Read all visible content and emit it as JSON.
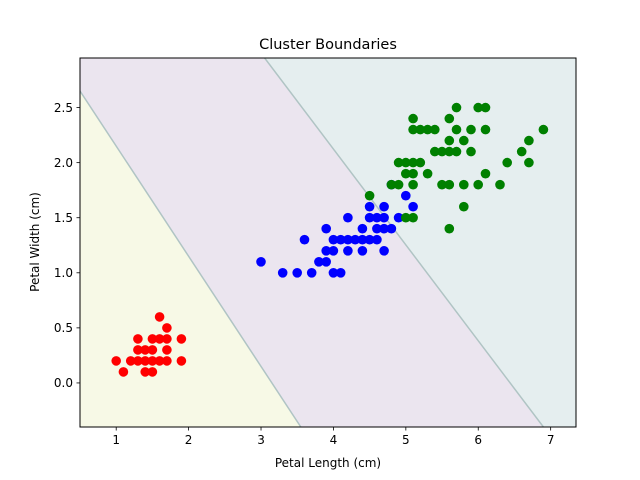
{
  "chart_data": {
    "type": "scatter",
    "title": "Cluster Boundaries",
    "xlabel": "Petal Length (cm)",
    "ylabel": "Petal Width (cm)",
    "xlim": [
      0.5,
      7.35
    ],
    "ylim": [
      -0.4,
      2.95
    ],
    "xticks": [
      1,
      2,
      3,
      4,
      5,
      6,
      7
    ],
    "xtick_labels": [
      "1",
      "2",
      "3",
      "4",
      "5",
      "6",
      "7"
    ],
    "yticks": [
      0.0,
      0.5,
      1.0,
      1.5,
      2.0,
      2.5
    ],
    "ytick_labels": [
      "0.0",
      "0.5",
      "1.0",
      "1.5",
      "2.0",
      "2.5"
    ],
    "grid": false,
    "regions": [
      {
        "color": "#f7f9e6",
        "polygon": [
          [
            0.5,
            -0.4
          ],
          [
            3.55,
            -0.4
          ],
          [
            0.5,
            2.65
          ]
        ]
      },
      {
        "color": "#ebe5ef",
        "polygon": [
          [
            3.55,
            -0.4
          ],
          [
            6.9,
            -0.4
          ],
          [
            3.05,
            2.95
          ],
          [
            0.5,
            2.95
          ],
          [
            0.5,
            2.65
          ]
        ]
      },
      {
        "color": "#e5eeef",
        "polygon": [
          [
            6.9,
            -0.4
          ],
          [
            7.35,
            -0.4
          ],
          [
            7.35,
            2.95
          ],
          [
            3.05,
            2.95
          ]
        ]
      }
    ],
    "boundary_color": "#b0c4c4",
    "series": [
      {
        "color": "#ff0000",
        "points": [
          [
            1.0,
            0.2
          ],
          [
            1.1,
            0.1
          ],
          [
            1.2,
            0.2
          ],
          [
            1.3,
            0.2
          ],
          [
            1.3,
            0.3
          ],
          [
            1.3,
            0.4
          ],
          [
            1.4,
            0.1
          ],
          [
            1.4,
            0.2
          ],
          [
            1.4,
            0.3
          ],
          [
            1.5,
            0.1
          ],
          [
            1.5,
            0.2
          ],
          [
            1.5,
            0.3
          ],
          [
            1.5,
            0.4
          ],
          [
            1.6,
            0.2
          ],
          [
            1.6,
            0.4
          ],
          [
            1.6,
            0.6
          ],
          [
            1.7,
            0.2
          ],
          [
            1.7,
            0.3
          ],
          [
            1.7,
            0.4
          ],
          [
            1.7,
            0.5
          ],
          [
            1.9,
            0.2
          ],
          [
            1.9,
            0.4
          ]
        ]
      },
      {
        "color": "#0000ff",
        "points": [
          [
            3.0,
            1.1
          ],
          [
            3.3,
            1.0
          ],
          [
            3.5,
            1.0
          ],
          [
            3.6,
            1.3
          ],
          [
            3.7,
            1.0
          ],
          [
            3.8,
            1.1
          ],
          [
            3.9,
            1.1
          ],
          [
            3.9,
            1.2
          ],
          [
            3.9,
            1.4
          ],
          [
            4.0,
            1.0
          ],
          [
            4.0,
            1.2
          ],
          [
            4.0,
            1.3
          ],
          [
            4.1,
            1.0
          ],
          [
            4.1,
            1.3
          ],
          [
            4.2,
            1.2
          ],
          [
            4.2,
            1.3
          ],
          [
            4.2,
            1.5
          ],
          [
            4.3,
            1.3
          ],
          [
            4.4,
            1.2
          ],
          [
            4.4,
            1.3
          ],
          [
            4.4,
            1.4
          ],
          [
            4.5,
            1.3
          ],
          [
            4.5,
            1.5
          ],
          [
            4.5,
            1.6
          ],
          [
            4.6,
            1.3
          ],
          [
            4.6,
            1.4
          ],
          [
            4.6,
            1.5
          ],
          [
            4.7,
            1.2
          ],
          [
            4.7,
            1.4
          ],
          [
            4.7,
            1.5
          ],
          [
            4.7,
            1.6
          ],
          [
            4.8,
            1.4
          ],
          [
            4.8,
            1.8
          ],
          [
            4.9,
            1.5
          ],
          [
            5.0,
            1.7
          ],
          [
            5.1,
            1.6
          ]
        ]
      },
      {
        "color": "#008000",
        "points": [
          [
            4.5,
            1.7
          ],
          [
            4.8,
            1.8
          ],
          [
            4.9,
            1.8
          ],
          [
            4.9,
            2.0
          ],
          [
            5.0,
            1.5
          ],
          [
            5.0,
            2.0
          ],
          [
            5.0,
            1.9
          ],
          [
            5.1,
            1.5
          ],
          [
            5.1,
            1.8
          ],
          [
            5.1,
            1.9
          ],
          [
            5.1,
            2.0
          ],
          [
            5.1,
            2.3
          ],
          [
            5.1,
            2.4
          ],
          [
            5.2,
            2.0
          ],
          [
            5.2,
            2.3
          ],
          [
            5.3,
            1.9
          ],
          [
            5.3,
            2.3
          ],
          [
            5.4,
            2.1
          ],
          [
            5.4,
            2.3
          ],
          [
            5.5,
            1.8
          ],
          [
            5.5,
            2.1
          ],
          [
            5.6,
            1.4
          ],
          [
            5.6,
            1.8
          ],
          [
            5.6,
            2.1
          ],
          [
            5.6,
            2.2
          ],
          [
            5.6,
            2.4
          ],
          [
            5.7,
            2.1
          ],
          [
            5.7,
            2.3
          ],
          [
            5.7,
            2.5
          ],
          [
            5.8,
            1.6
          ],
          [
            5.8,
            1.8
          ],
          [
            5.8,
            2.2
          ],
          [
            5.9,
            2.1
          ],
          [
            5.9,
            2.3
          ],
          [
            6.0,
            1.8
          ],
          [
            6.0,
            2.5
          ],
          [
            6.1,
            1.9
          ],
          [
            6.1,
            2.3
          ],
          [
            6.1,
            2.5
          ],
          [
            6.3,
            1.8
          ],
          [
            6.4,
            2.0
          ],
          [
            6.6,
            2.1
          ],
          [
            6.7,
            2.0
          ],
          [
            6.7,
            2.2
          ],
          [
            6.9,
            2.3
          ]
        ]
      }
    ]
  }
}
